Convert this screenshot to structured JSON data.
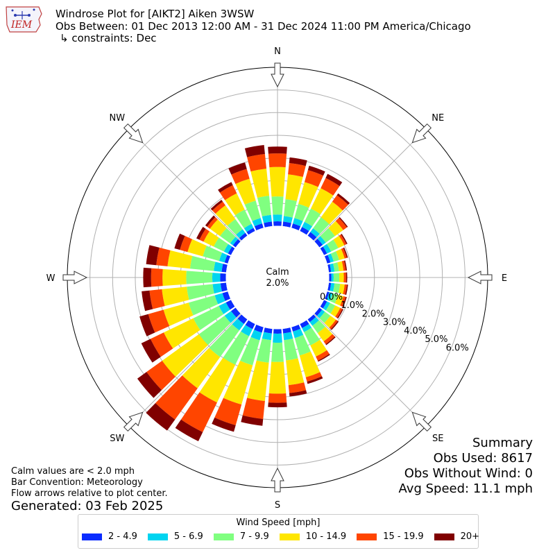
{
  "header": {
    "title": "Windrose Plot for [AIKT2] Aiken 3WSW",
    "obs_between": "Obs Between: 01 Dec 2013 12:00 AM - 31 Dec 2024 11:00 PM America/Chicago",
    "constraints": "↳ constraints: Dec",
    "logo_text": "IEM"
  },
  "notes": {
    "calm_note": "Calm values are < 2.0 mph",
    "bar_convention": "Bar Convention: Meteorology",
    "flow_note": "Flow arrows relative to plot center.",
    "generated": "Generated: 03 Feb 2025"
  },
  "summary": {
    "title": "Summary",
    "obs_used": "Obs Used: 8617",
    "obs_without_wind": "Obs Without Wind: 0",
    "avg_speed": "Avg Speed: 11.1 mph"
  },
  "legend": {
    "title": "Wind Speed [mph]",
    "items": [
      {
        "label": "2 - 4.9",
        "color": "#0a2cff"
      },
      {
        "label": "5 - 6.9",
        "color": "#00d4f0"
      },
      {
        "label": "7 - 9.9",
        "color": "#80ff80"
      },
      {
        "label": "10 - 14.9",
        "color": "#ffe600"
      },
      {
        "label": "15 - 19.9",
        "color": "#ff4500"
      },
      {
        "label": "20+",
        "color": "#800000"
      }
    ]
  },
  "chart_data": {
    "type": "windrose",
    "calm_label": "Calm",
    "calm_percent": 2.0,
    "calm_text": "2.0%",
    "radial_max": 7.0,
    "radial_ticks": [
      0,
      1,
      2,
      3,
      4,
      5,
      6
    ],
    "radial_tick_labels": [
      "0.0%",
      "1.0%",
      "2.0%",
      "3.0%",
      "4.0%",
      "5.0%",
      "6.0%"
    ],
    "directions": [
      "N",
      "NE",
      "E",
      "SE",
      "S",
      "SW",
      "W",
      "NW"
    ],
    "bins": [
      "2 - 4.9",
      "5 - 6.9",
      "7 - 9.9",
      "10 - 14.9",
      "15 - 19.9",
      "20+"
    ],
    "sector_width_deg": 10,
    "sectors": [
      {
        "dir": 0,
        "cum": [
          0.2,
          0.5,
          1.3,
          2.6,
          3.2,
          3.5
        ]
      },
      {
        "dir": 10,
        "cum": [
          0.2,
          0.45,
          1.2,
          2.3,
          2.8,
          3.05
        ]
      },
      {
        "dir": 20,
        "cum": [
          0.2,
          0.45,
          1.1,
          2.1,
          2.65,
          2.85
        ]
      },
      {
        "dir": 30,
        "cum": [
          0.2,
          0.45,
          1.1,
          2.1,
          2.6,
          2.8
        ]
      },
      {
        "dir": 40,
        "cum": [
          0.2,
          0.4,
          1.0,
          1.85,
          2.2,
          2.3
        ]
      },
      {
        "dir": 50,
        "cum": [
          0.18,
          0.35,
          0.85,
          1.3,
          1.5,
          1.55
        ]
      },
      {
        "dir": 60,
        "cum": [
          0.15,
          0.35,
          0.7,
          1.0,
          1.1,
          1.15
        ]
      },
      {
        "dir": 70,
        "cum": [
          0.15,
          0.3,
          0.55,
          0.8,
          0.9,
          0.95
        ]
      },
      {
        "dir": 80,
        "cum": [
          0.1,
          0.25,
          0.45,
          0.65,
          0.75,
          0.8
        ]
      },
      {
        "dir": 90,
        "cum": [
          0.1,
          0.2,
          0.45,
          0.65,
          0.75,
          0.8
        ]
      },
      {
        "dir": 100,
        "cum": [
          0.1,
          0.25,
          0.5,
          0.7,
          0.8,
          0.85
        ]
      },
      {
        "dir": 110,
        "cum": [
          0.1,
          0.25,
          0.5,
          0.75,
          0.85,
          0.9
        ]
      },
      {
        "dir": 120,
        "cum": [
          0.15,
          0.3,
          0.55,
          0.8,
          0.9,
          0.95
        ]
      },
      {
        "dir": 130,
        "cum": [
          0.15,
          0.3,
          0.6,
          0.9,
          1.0,
          1.05
        ]
      },
      {
        "dir": 140,
        "cum": [
          0.15,
          0.35,
          0.75,
          1.2,
          1.35,
          1.4
        ]
      },
      {
        "dir": 150,
        "cum": [
          0.2,
          0.4,
          1.05,
          1.6,
          1.8,
          1.85
        ]
      },
      {
        "dir": 160,
        "cum": [
          0.2,
          0.5,
          1.3,
          2.3,
          2.5,
          2.6
        ]
      },
      {
        "dir": 170,
        "cum": [
          0.2,
          0.5,
          1.4,
          2.5,
          2.85,
          3.0
        ]
      },
      {
        "dir": 180,
        "cum": [
          0.2,
          0.6,
          1.45,
          2.85,
          3.25,
          3.45
        ]
      },
      {
        "dir": 190,
        "cum": [
          0.2,
          0.5,
          1.5,
          3.2,
          4.0,
          4.3
        ]
      },
      {
        "dir": 200,
        "cum": [
          0.25,
          0.6,
          1.75,
          3.55,
          4.5,
          4.8
        ]
      },
      {
        "dir": 210,
        "cum": [
          0.25,
          0.6,
          2.0,
          3.85,
          5.3,
          5.75
        ]
      },
      {
        "dir": 220,
        "cum": [
          0.25,
          0.6,
          2.05,
          3.75,
          5.45,
          6.05
        ]
      },
      {
        "dir": 230,
        "cum": [
          0.25,
          0.6,
          2.0,
          4.0,
          4.85,
          5.35
        ]
      },
      {
        "dir": 240,
        "cum": [
          0.25,
          0.6,
          1.85,
          3.3,
          3.95,
          4.4
        ]
      },
      {
        "dir": 250,
        "cum": [
          0.25,
          0.6,
          1.8,
          2.95,
          3.65,
          4.05
        ]
      },
      {
        "dir": 260,
        "cum": [
          0.25,
          0.6,
          1.75,
          2.85,
          3.4,
          3.75
        ]
      },
      {
        "dir": 270,
        "cum": [
          0.25,
          0.6,
          1.75,
          2.8,
          3.3,
          3.65
        ]
      },
      {
        "dir": 280,
        "cum": [
          0.2,
          0.55,
          1.6,
          2.6,
          3.1,
          3.55
        ]
      },
      {
        "dir": 290,
        "cum": [
          0.15,
          0.4,
          1.15,
          1.85,
          2.2,
          2.45
        ]
      },
      {
        "dir": 300,
        "cum": [
          0.15,
          0.35,
          0.85,
          1.35,
          1.55,
          1.7
        ]
      },
      {
        "dir": 310,
        "cum": [
          0.15,
          0.3,
          0.85,
          1.4,
          1.55,
          1.65
        ]
      },
      {
        "dir": 320,
        "cum": [
          0.15,
          0.35,
          0.9,
          1.65,
          1.85,
          1.95
        ]
      },
      {
        "dir": 330,
        "cum": [
          0.15,
          0.35,
          1.05,
          1.85,
          2.25,
          2.4
        ]
      },
      {
        "dir": 340,
        "cum": [
          0.2,
          0.45,
          1.25,
          2.25,
          2.7,
          3.0
        ]
      },
      {
        "dir": 350,
        "cum": [
          0.2,
          0.5,
          1.35,
          2.55,
          3.2,
          3.6
        ]
      }
    ]
  }
}
